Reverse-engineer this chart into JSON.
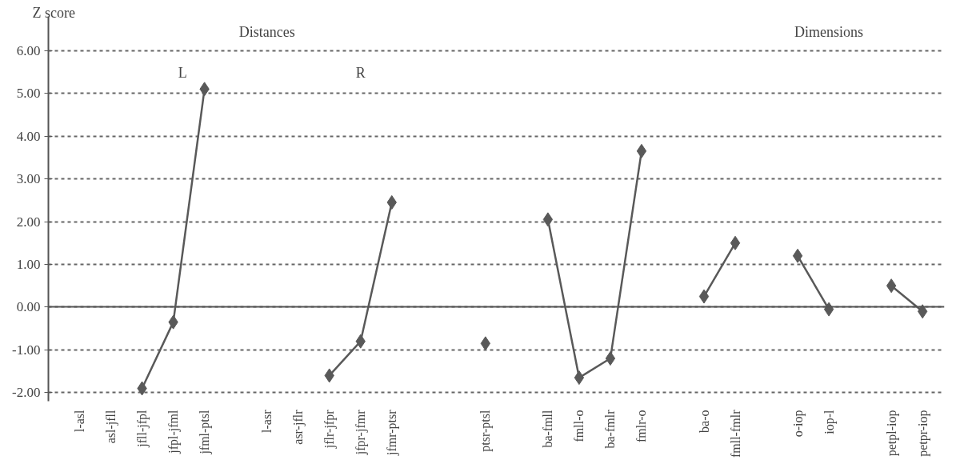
{
  "chart_data": {
    "type": "line",
    "ylabel": "Z score",
    "annotations": [
      "Distances",
      "Dimensions",
      "L",
      "R"
    ],
    "categories": [
      "l-asl",
      "asl-jfll",
      "jfll-jfpl",
      "jfpl-jfml",
      "jfml-ptsl",
      null,
      "l-asr",
      "asr-jflr",
      "jflr-jfpr",
      "jfpr-jfmr",
      "jfmr-ptsr",
      null,
      null,
      "ptsr-ptsl",
      null,
      "ba-fmll",
      "fmll-o",
      "ba-fmlr",
      "fmlr-o",
      null,
      "ba-o",
      "fmll-fmlr",
      null,
      "o-iop",
      "iop-l",
      null,
      "petpl-iop",
      "petpr-iop"
    ],
    "series": [
      {
        "color": "#595959",
        "values": [
          null,
          null,
          -1.9,
          -0.35,
          5.1,
          null,
          null,
          null,
          -1.6,
          -0.8,
          2.45,
          null,
          null,
          -0.85,
          null,
          2.05,
          -1.65,
          -1.2,
          3.65,
          null,
          0.25,
          1.5,
          null,
          1.2,
          -0.05,
          null,
          0.5,
          -0.1
        ]
      }
    ],
    "ylim": [
      -2.2,
      6.8
    ],
    "yticks": [
      {
        "value": -2,
        "label": "-2.00"
      },
      {
        "value": -1,
        "label": "-1.00"
      },
      {
        "value": 0,
        "label": "0.00"
      },
      {
        "value": 1,
        "label": "1.00"
      },
      {
        "value": 2,
        "label": "2.00"
      },
      {
        "value": 3,
        "label": "3.00"
      },
      {
        "value": 4,
        "label": "4.00"
      },
      {
        "value": 5,
        "label": "5.00"
      },
      {
        "value": 6,
        "label": "6.00"
      }
    ],
    "grid": "y",
    "marker": "diamond",
    "line_style": "solid"
  }
}
